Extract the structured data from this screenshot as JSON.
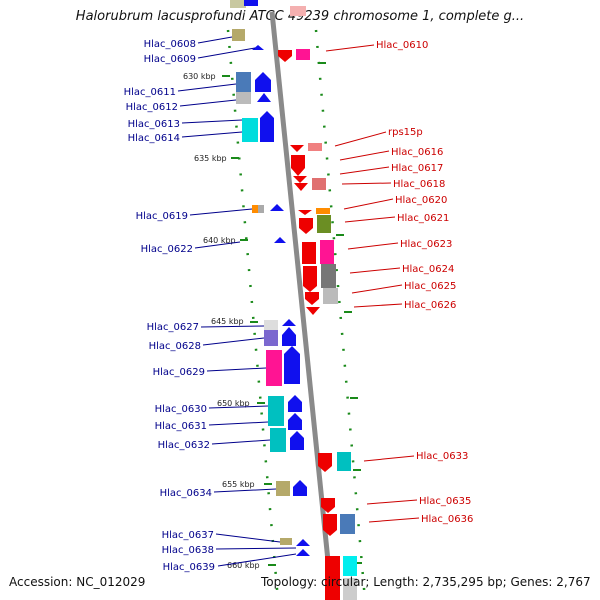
{
  "title": "Halorubrum lacusprofundi ATCC 49239 chromosome 1, complete g...",
  "footer": {
    "accession": "Accession: NC_012029",
    "summary": "Topology: circular; Length: 2,735,295 bp; Genes: 2,767"
  },
  "colors": {
    "left_label": "#00008b",
    "right_label": "#cc0000",
    "backbone": "#8a8a8a",
    "tick": "#1a8a1a"
  },
  "kbp_labels": [
    "630 kbp",
    "635 kbp",
    "640 kbp",
    "645 kbp",
    "650 kbp",
    "655 kbp",
    "660 kbp"
  ],
  "genes_left": [
    {
      "name": "Hlac_0608"
    },
    {
      "name": "Hlac_0609"
    },
    {
      "name": "Hlac_0611"
    },
    {
      "name": "Hlac_0612"
    },
    {
      "name": "Hlac_0613"
    },
    {
      "name": "Hlac_0614"
    },
    {
      "name": "Hlac_0619"
    },
    {
      "name": "Hlac_0622"
    },
    {
      "name": "Hlac_0627"
    },
    {
      "name": "Hlac_0628"
    },
    {
      "name": "Hlac_0629"
    },
    {
      "name": "Hlac_0630"
    },
    {
      "name": "Hlac_0631"
    },
    {
      "name": "Hlac_0632"
    },
    {
      "name": "Hlac_0634"
    },
    {
      "name": "Hlac_0637"
    },
    {
      "name": "Hlac_0638"
    },
    {
      "name": "Hlac_0639"
    }
  ],
  "genes_right": [
    {
      "name": "Hlac_0610"
    },
    {
      "name": "rps15p"
    },
    {
      "name": "Hlac_0616"
    },
    {
      "name": "Hlac_0617"
    },
    {
      "name": "Hlac_0618"
    },
    {
      "name": "Hlac_0620"
    },
    {
      "name": "Hlac_0621"
    },
    {
      "name": "Hlac_0623"
    },
    {
      "name": "Hlac_0624"
    },
    {
      "name": "Hlac_0625"
    },
    {
      "name": "Hlac_0626"
    },
    {
      "name": "Hlac_0633"
    },
    {
      "name": "Hlac_0635"
    },
    {
      "name": "Hlac_0636"
    }
  ]
}
